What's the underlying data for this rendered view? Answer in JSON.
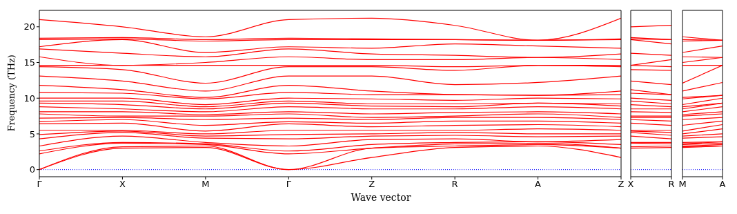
{
  "chart_data": [
    {
      "type": "line",
      "xlabel": "Wave vector",
      "ylabel": "Frequency (THz)",
      "categories": [
        "Γ",
        "X",
        "M",
        "Γ",
        "Z",
        "R",
        "A",
        "Z"
      ],
      "ylim": [
        -1,
        22.3
      ],
      "yticks": [
        0,
        5,
        10,
        15,
        20
      ],
      "ref_lines": [
        {
          "axis": "y",
          "value": 0,
          "color": "#0000ff",
          "line_style": "dotted"
        }
      ],
      "series": [
        {
          "color": "#ff0000",
          "values": [
            0,
            3.0,
            3.1,
            0,
            1.7,
            3.1,
            3.3,
            1.7
          ]
        },
        {
          "color": "#ff0000",
          "values": [
            0,
            3.2,
            3.3,
            0,
            3.0,
            3.3,
            3.5,
            3.0
          ]
        },
        {
          "color": "#ff0000",
          "values": [
            2.2,
            3.7,
            3.5,
            2.2,
            3.0,
            3.6,
            3.7,
            3.0
          ]
        },
        {
          "color": "#ff0000",
          "values": [
            2.6,
            3.8,
            3.6,
            2.6,
            3.5,
            3.8,
            3.9,
            3.5
          ]
        },
        {
          "color": "#ff0000",
          "values": [
            3.3,
            4.7,
            3.8,
            3.3,
            4.2,
            4.3,
            3.9,
            4.2
          ]
        },
        {
          "color": "#ff0000",
          "values": [
            4.3,
            5.2,
            4.4,
            4.3,
            4.7,
            4.8,
            4.6,
            4.7
          ]
        },
        {
          "color": "#ff0000",
          "values": [
            4.9,
            5.4,
            4.7,
            4.9,
            5.0,
            5.2,
            5.0,
            5.0
          ]
        },
        {
          "color": "#ff0000",
          "values": [
            5.5,
            5.5,
            5.0,
            5.5,
            5.5,
            5.5,
            5.7,
            5.5
          ]
        },
        {
          "color": "#ff0000",
          "values": [
            6.4,
            6.5,
            5.4,
            6.4,
            6.0,
            6.2,
            6.3,
            6.0
          ]
        },
        {
          "color": "#ff0000",
          "values": [
            6.7,
            7.0,
            6.2,
            6.7,
            6.5,
            6.8,
            6.8,
            6.5
          ]
        },
        {
          "color": "#ff0000",
          "values": [
            7.2,
            7.3,
            7.0,
            7.2,
            7.0,
            7.3,
            7.3,
            7.0
          ]
        },
        {
          "color": "#ff0000",
          "values": [
            7.8,
            7.5,
            7.5,
            7.8,
            7.3,
            7.5,
            7.8,
            7.3
          ]
        },
        {
          "color": "#ff0000",
          "values": [
            8.1,
            8.1,
            7.7,
            8.1,
            7.8,
            8.0,
            8.1,
            7.8
          ]
        },
        {
          "color": "#ff0000",
          "values": [
            8.8,
            8.5,
            8.1,
            8.8,
            8.5,
            8.5,
            8.8,
            8.5
          ]
        },
        {
          "color": "#ff0000",
          "values": [
            9.3,
            9.1,
            8.5,
            9.3,
            8.9,
            8.8,
            9.3,
            8.9
          ]
        },
        {
          "color": "#ff0000",
          "values": [
            9.6,
            9.6,
            8.8,
            9.6,
            9.2,
            9.2,
            9.3,
            9.2
          ]
        },
        {
          "color": "#ff0000",
          "values": [
            10.0,
            10.0,
            9.1,
            10.0,
            9.9,
            9.7,
            10.0,
            9.9
          ]
        },
        {
          "color": "#ff0000",
          "values": [
            10.8,
            10.7,
            9.9,
            10.8,
            10.5,
            10.5,
            10.4,
            10.5
          ]
        },
        {
          "color": "#ff0000",
          "values": [
            11.8,
            11.2,
            10.1,
            11.8,
            11.0,
            10.5,
            10.4,
            11.0
          ]
        },
        {
          "color": "#ff0000",
          "values": [
            13.1,
            12.4,
            11.0,
            13.1,
            13.1,
            11.9,
            12.2,
            13.1
          ]
        },
        {
          "color": "#ff0000",
          "values": [
            14.4,
            14.0,
            12.1,
            14.4,
            14.4,
            13.9,
            14.6,
            14.4
          ]
        },
        {
          "color": "#ff0000",
          "values": [
            14.6,
            14.6,
            14.6,
            14.6,
            14.6,
            14.4,
            14.6,
            14.6
          ]
        },
        {
          "color": "#ff0000",
          "values": [
            15.8,
            14.6,
            15.0,
            15.8,
            15.4,
            15.4,
            15.7,
            15.4
          ]
        },
        {
          "color": "#ff0000",
          "values": [
            16.9,
            16.3,
            15.8,
            16.9,
            16.2,
            16.0,
            15.7,
            16.2
          ]
        },
        {
          "color": "#ff0000",
          "values": [
            17.2,
            18.2,
            16.4,
            17.2,
            17.0,
            17.6,
            17.3,
            17.0
          ]
        },
        {
          "color": "#ff0000",
          "values": [
            18.2,
            18.3,
            18.0,
            18.2,
            18.2,
            18.2,
            18.1,
            18.2
          ]
        },
        {
          "color": "#ff0000",
          "values": [
            18.4,
            18.5,
            18.2,
            18.4,
            18.3,
            18.2,
            18.1,
            18.3
          ]
        },
        {
          "color": "#ff0000",
          "values": [
            21.0,
            20.0,
            18.6,
            21.0,
            21.2,
            20.2,
            18.1,
            21.2
          ]
        }
      ]
    },
    {
      "type": "line",
      "categories": [
        "X",
        "R"
      ],
      "ylim": [
        -1,
        22.3
      ],
      "yticks": [
        0,
        5,
        10,
        15,
        20
      ],
      "tick_labels": "x",
      "ref_lines": [
        {
          "axis": "y",
          "value": 0,
          "color": "#0000ff",
          "line_style": "dotted"
        }
      ],
      "series": [
        {
          "color": "#ff0000",
          "values": [
            3.0,
            3.1
          ]
        },
        {
          "color": "#ff0000",
          "values": [
            3.2,
            3.3
          ]
        },
        {
          "color": "#ff0000",
          "values": [
            3.7,
            3.6
          ]
        },
        {
          "color": "#ff0000",
          "values": [
            3.8,
            3.8
          ]
        },
        {
          "color": "#ff0000",
          "values": [
            4.7,
            4.3
          ]
        },
        {
          "color": "#ff0000",
          "values": [
            5.2,
            4.8
          ]
        },
        {
          "color": "#ff0000",
          "values": [
            5.4,
            5.2
          ]
        },
        {
          "color": "#ff0000",
          "values": [
            5.5,
            5.5
          ]
        },
        {
          "color": "#ff0000",
          "values": [
            6.5,
            6.2
          ]
        },
        {
          "color": "#ff0000",
          "values": [
            7.0,
            6.8
          ]
        },
        {
          "color": "#ff0000",
          "values": [
            7.3,
            7.3
          ]
        },
        {
          "color": "#ff0000",
          "values": [
            7.5,
            7.5
          ]
        },
        {
          "color": "#ff0000",
          "values": [
            8.1,
            8.0
          ]
        },
        {
          "color": "#ff0000",
          "values": [
            8.5,
            8.5
          ]
        },
        {
          "color": "#ff0000",
          "values": [
            9.1,
            8.8
          ]
        },
        {
          "color": "#ff0000",
          "values": [
            9.6,
            9.2
          ]
        },
        {
          "color": "#ff0000",
          "values": [
            10.0,
            9.7
          ]
        },
        {
          "color": "#ff0000",
          "values": [
            10.7,
            10.5
          ]
        },
        {
          "color": "#ff0000",
          "values": [
            11.2,
            10.5
          ]
        },
        {
          "color": "#ff0000",
          "values": [
            12.4,
            11.9
          ]
        },
        {
          "color": "#ff0000",
          "values": [
            14.0,
            13.9
          ]
        },
        {
          "color": "#ff0000",
          "values": [
            14.6,
            14.4
          ]
        },
        {
          "color": "#ff0000",
          "values": [
            14.6,
            15.4
          ]
        },
        {
          "color": "#ff0000",
          "values": [
            16.3,
            16.0
          ]
        },
        {
          "color": "#ff0000",
          "values": [
            18.2,
            17.6
          ]
        },
        {
          "color": "#ff0000",
          "values": [
            18.3,
            18.2
          ]
        },
        {
          "color": "#ff0000",
          "values": [
            18.5,
            18.2
          ]
        },
        {
          "color": "#ff0000",
          "values": [
            20.0,
            20.2
          ]
        }
      ]
    },
    {
      "type": "line",
      "categories": [
        "M",
        "A"
      ],
      "ylim": [
        -1,
        22.3
      ],
      "yticks": [
        0,
        5,
        10,
        15,
        20
      ],
      "tick_labels": "x",
      "ref_lines": [
        {
          "axis": "y",
          "value": 0,
          "color": "#0000ff",
          "line_style": "dotted"
        }
      ],
      "series": [
        {
          "color": "#ff0000",
          "values": [
            3.1,
            3.3
          ]
        },
        {
          "color": "#ff0000",
          "values": [
            3.2,
            3.3
          ]
        },
        {
          "color": "#ff0000",
          "values": [
            3.3,
            3.5
          ]
        },
        {
          "color": "#ff0000",
          "values": [
            3.5,
            3.7
          ]
        },
        {
          "color": "#ff0000",
          "values": [
            3.6,
            3.9
          ]
        },
        {
          "color": "#ff0000",
          "values": [
            3.8,
            3.9
          ]
        },
        {
          "color": "#ff0000",
          "values": [
            4.4,
            4.6
          ]
        },
        {
          "color": "#ff0000",
          "values": [
            4.7,
            5.0
          ]
        },
        {
          "color": "#ff0000",
          "values": [
            5.0,
            5.7
          ]
        },
        {
          "color": "#ff0000",
          "values": [
            5.4,
            6.3
          ]
        },
        {
          "color": "#ff0000",
          "values": [
            6.2,
            6.8
          ]
        },
        {
          "color": "#ff0000",
          "values": [
            7.0,
            7.3
          ]
        },
        {
          "color": "#ff0000",
          "values": [
            7.5,
            7.8
          ]
        },
        {
          "color": "#ff0000",
          "values": [
            7.7,
            8.1
          ]
        },
        {
          "color": "#ff0000",
          "values": [
            8.1,
            8.8
          ]
        },
        {
          "color": "#ff0000",
          "values": [
            8.5,
            9.3
          ]
        },
        {
          "color": "#ff0000",
          "values": [
            8.8,
            9.3
          ]
        },
        {
          "color": "#ff0000",
          "values": [
            9.1,
            10.0
          ]
        },
        {
          "color": "#ff0000",
          "values": [
            9.9,
            10.4
          ]
        },
        {
          "color": "#ff0000",
          "values": [
            10.1,
            10.4
          ]
        },
        {
          "color": "#ff0000",
          "values": [
            11.0,
            12.2
          ]
        },
        {
          "color": "#ff0000",
          "values": [
            12.1,
            14.6
          ]
        },
        {
          "color": "#ff0000",
          "values": [
            14.6,
            14.6
          ]
        },
        {
          "color": "#ff0000",
          "values": [
            15.0,
            15.7
          ]
        },
        {
          "color": "#ff0000",
          "values": [
            15.8,
            15.7
          ]
        },
        {
          "color": "#ff0000",
          "values": [
            16.4,
            17.3
          ]
        },
        {
          "color": "#ff0000",
          "values": [
            18.0,
            18.1
          ]
        },
        {
          "color": "#ff0000",
          "values": [
            18.2,
            18.1
          ]
        },
        {
          "color": "#ff0000",
          "values": [
            18.6,
            18.1
          ]
        }
      ]
    }
  ]
}
